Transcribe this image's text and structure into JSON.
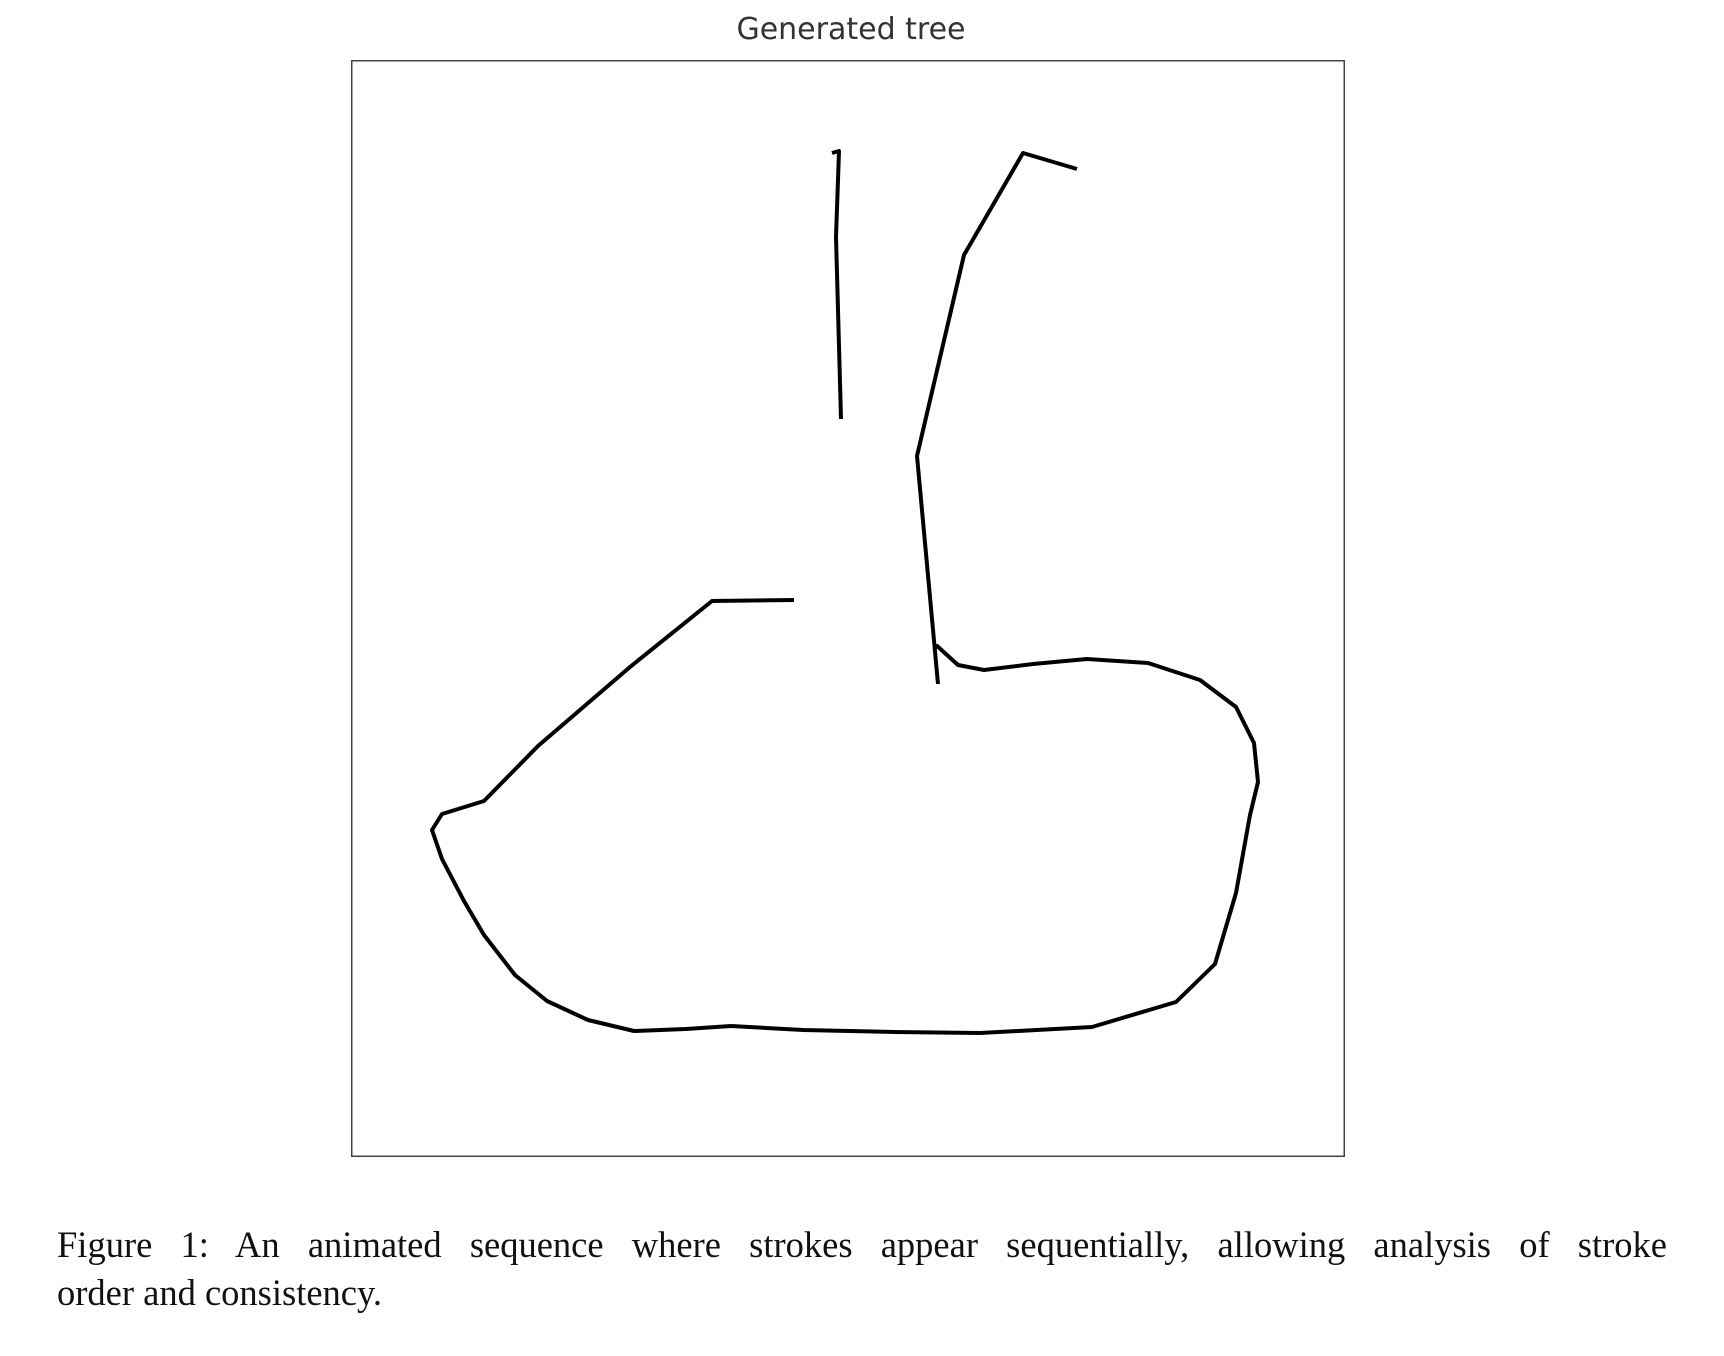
{
  "figure": {
    "title": "Generated tree",
    "stroke_color": "#000000",
    "frame_color": "#444444",
    "caption_line1": "Figure 1:  An animated sequence where strokes appear sequentially, allowing analysis of stroke",
    "caption_line2": "order and consistency."
  }
}
